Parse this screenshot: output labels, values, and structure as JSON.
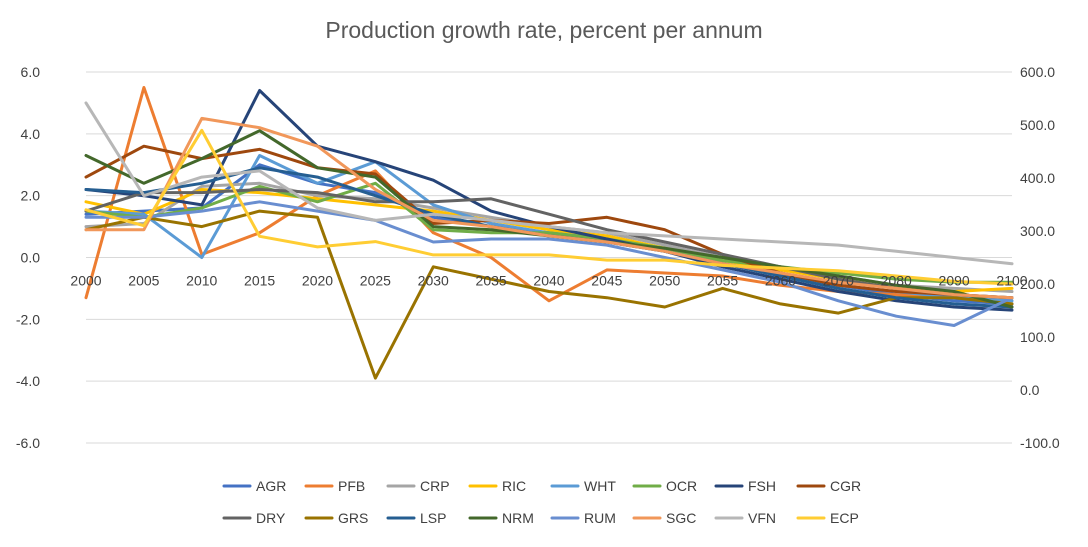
{
  "chart_data": {
    "type": "line",
    "title": "Production growth rate, percent per annum",
    "xlabel": "",
    "ylabel": "",
    "x": [
      "2000",
      "2005",
      "2010",
      "2015",
      "2020",
      "2025",
      "2030",
      "2035",
      "2040",
      "2045",
      "2050",
      "2055",
      "2060",
      "2070",
      "2080",
      "2090",
      "2100"
    ],
    "ylim": [
      -6,
      6
    ],
    "yticks": [
      "6.0",
      "4.0",
      "2.0",
      "0.0",
      "-2.0",
      "-4.0",
      "-6.0"
    ],
    "y2lim": [
      -100,
      600
    ],
    "y2ticks": [
      "600.0",
      "500.0",
      "400.0",
      "300.0",
      "200.0",
      "100.0",
      "0.0",
      "-100.0"
    ],
    "grid": true,
    "legend_position": "bottom",
    "series": [
      {
        "name": "AGR",
        "color": "#4472c4",
        "axis": "left",
        "values": [
          1.4,
          1.5,
          1.6,
          3.0,
          2.4,
          2.1,
          1.3,
          1.0,
          0.8,
          0.6,
          0.2,
          -0.2,
          -0.5,
          -0.9,
          -1.2,
          -1.4,
          -1.5
        ]
      },
      {
        "name": "PFB",
        "color": "#ed7d31",
        "axis": "left",
        "values": [
          -1.3,
          5.5,
          0.1,
          0.8,
          2.0,
          2.8,
          0.8,
          0.0,
          -1.4,
          -0.4,
          -0.5,
          -0.6,
          -0.9,
          -1.1,
          -1.2,
          -1.3,
          -1.3
        ]
      },
      {
        "name": "CRP",
        "color": "#a5a5a5",
        "axis": "left",
        "values": [
          1.0,
          1.1,
          2.3,
          2.4,
          2.0,
          1.9,
          1.6,
          1.3,
          1.0,
          0.8,
          0.4,
          0.0,
          -0.3,
          -0.6,
          -0.9,
          -1.0,
          -1.1
        ]
      },
      {
        "name": "RIC",
        "color": "#ffc000",
        "axis": "left",
        "values": [
          1.8,
          1.4,
          2.2,
          2.1,
          1.9,
          1.7,
          1.5,
          1.2,
          0.9,
          0.7,
          0.3,
          -0.1,
          -0.4,
          -0.7,
          -1.0,
          -1.1,
          -1.0
        ]
      },
      {
        "name": "WHT",
        "color": "#5b9bd5",
        "axis": "left",
        "values": [
          1.5,
          1.4,
          0.0,
          3.3,
          2.4,
          3.1,
          1.7,
          1.1,
          0.8,
          0.5,
          0.2,
          -0.2,
          -0.5,
          -0.9,
          -1.1,
          -1.3,
          -1.4
        ]
      },
      {
        "name": "OCR",
        "color": "#70ad47",
        "axis": "left",
        "values": [
          1.5,
          1.3,
          1.6,
          2.3,
          1.8,
          2.4,
          0.9,
          0.8,
          0.8,
          0.6,
          0.3,
          -0.1,
          -0.3,
          -0.5,
          -0.7,
          -0.8,
          -0.8
        ]
      },
      {
        "name": "FSH",
        "color": "#264478",
        "axis": "left",
        "values": [
          2.2,
          2.0,
          1.7,
          5.4,
          3.6,
          3.1,
          2.5,
          1.5,
          1.0,
          0.6,
          0.2,
          -0.3,
          -0.7,
          -1.1,
          -1.4,
          -1.6,
          -1.7
        ]
      },
      {
        "name": "CGR",
        "color": "#9e480e",
        "axis": "left",
        "values": [
          2.6,
          3.6,
          3.2,
          3.5,
          2.9,
          2.7,
          1.1,
          1.2,
          1.1,
          1.3,
          0.9,
          0.1,
          -0.5,
          -0.9,
          -1.1,
          -1.2,
          -1.3
        ]
      },
      {
        "name": "DRY",
        "color": "#636363",
        "axis": "left",
        "values": [
          1.5,
          2.1,
          2.1,
          2.2,
          2.1,
          1.8,
          1.8,
          1.9,
          1.4,
          0.9,
          0.5,
          0.1,
          -0.3,
          -0.7,
          -1.0,
          -1.2,
          -1.3
        ]
      },
      {
        "name": "GRS",
        "color": "#997300",
        "axis": "left",
        "values": [
          0.9,
          1.3,
          1.0,
          1.5,
          1.3,
          -3.9,
          -0.3,
          -0.7,
          -1.1,
          -1.3,
          -1.6,
          -1.0,
          -1.5,
          -1.8,
          -1.3,
          -1.3,
          -1.5
        ]
      },
      {
        "name": "LSP",
        "color": "#255e91",
        "axis": "left",
        "values": [
          2.2,
          2.1,
          2.4,
          2.9,
          2.6,
          2.0,
          1.4,
          1.0,
          0.7,
          0.5,
          0.2,
          -0.2,
          -0.6,
          -1.0,
          -1.3,
          -1.5,
          -1.6
        ]
      },
      {
        "name": "NRM",
        "color": "#43682b",
        "axis": "left",
        "values": [
          3.3,
          2.4,
          3.2,
          4.1,
          2.9,
          2.6,
          1.0,
          0.9,
          0.7,
          0.5,
          0.3,
          0.0,
          -0.3,
          -0.6,
          -0.9,
          -1.1,
          -1.6
        ]
      },
      {
        "name": "RUM",
        "color": "#698ed0",
        "axis": "left",
        "values": [
          1.3,
          1.3,
          1.5,
          1.8,
          1.5,
          1.2,
          0.5,
          0.6,
          0.6,
          0.4,
          0.0,
          -0.4,
          -0.8,
          -1.4,
          -1.9,
          -2.2,
          -1.3
        ]
      },
      {
        "name": "SGC",
        "color": "#f1975a",
        "axis": "left",
        "values": [
          0.9,
          0.9,
          4.5,
          4.2,
          3.6,
          2.2,
          1.2,
          1.0,
          0.7,
          0.5,
          0.2,
          -0.2,
          -0.5,
          -0.8,
          -1.0,
          -1.2,
          -1.3
        ]
      },
      {
        "name": "VFN",
        "color": "#b7b7b7",
        "axis": "left",
        "values": [
          5.0,
          2.0,
          2.6,
          2.8,
          1.6,
          1.2,
          1.4,
          1.2,
          1.0,
          0.8,
          0.7,
          0.6,
          0.5,
          0.4,
          0.2,
          0.0,
          -0.2
        ]
      },
      {
        "name": "ECP",
        "color": "#ffcd33",
        "axis": "right",
        "values": [
          340,
          310,
          490,
          290,
          270,
          280,
          255,
          255,
          255,
          245,
          245,
          235,
          230,
          225,
          215,
          205,
          200
        ]
      }
    ]
  }
}
